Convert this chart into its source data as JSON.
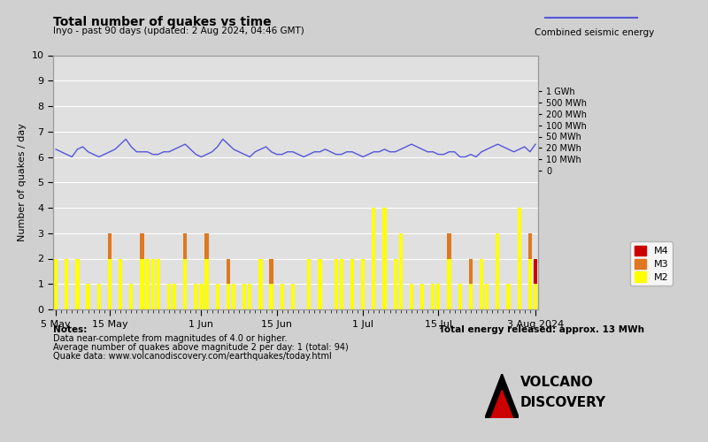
{
  "title": "Total number of quakes vs time",
  "subtitle": "Inyo - past 90 days (updated: 2 Aug 2024, 04:46 GMT)",
  "ylabel": "Number of quakes / day",
  "right_label": "Combined seismic energy",
  "background_color": "#d0d0d0",
  "plot_bg_color": "#e0e0e0",
  "bar_color_m2": "#ffff00",
  "bar_color_m3": "#e07820",
  "bar_color_m4": "#cc0000",
  "line_color": "#5555dd",
  "ylim": [
    0,
    10
  ],
  "notes_line1": "Notes:",
  "notes_line2": "Data near-complete from magnitudes of 4.0 or higher.",
  "notes_line3": "Average number of quakes above magnitude 2 per day: 1 (total: 94)",
  "notes_line4": "Quake data: www.volcanodiscovery.com/earthquakes/today.html",
  "energy_note": "Total energy released: approx. 13 MWh",
  "xtick_labels": [
    "5 May",
    "15 May",
    "1 Jun",
    "15 Jun",
    "1 Jul",
    "15 Jul",
    "3 Aug 2024"
  ],
  "xtick_positions": [
    0,
    10,
    27,
    41,
    57,
    71,
    89
  ],
  "right_y_positions": [
    5.45,
    5.9,
    6.35,
    6.8,
    7.25,
    7.7,
    8.15,
    8.6
  ],
  "right_y_labels": [
    "0",
    "10 MWh",
    "20 MWh",
    "50 MWh",
    "100 MWh",
    "200 MWh",
    "500 MWh",
    "1 GWh"
  ],
  "bar_m2": [
    2,
    0,
    2,
    0,
    2,
    0,
    1,
    0,
    1,
    0,
    2,
    0,
    2,
    0,
    1,
    0,
    2,
    2,
    2,
    2,
    0,
    1,
    1,
    0,
    2,
    0,
    1,
    1,
    2,
    0,
    1,
    0,
    1,
    1,
    0,
    1,
    1,
    0,
    2,
    0,
    1,
    0,
    1,
    0,
    1,
    0,
    0,
    2,
    0,
    2,
    0,
    0,
    2,
    2,
    0,
    2,
    0,
    2,
    0,
    4,
    0,
    4,
    0,
    2,
    3,
    0,
    1,
    0,
    1,
    0,
    1,
    1,
    0,
    2,
    0,
    1,
    0,
    1,
    0,
    2,
    1,
    0,
    3,
    0,
    1,
    0,
    4,
    0,
    2,
    1
  ],
  "bar_m3": [
    0,
    0,
    0,
    0,
    0,
    0,
    0,
    0,
    0,
    0,
    1,
    0,
    0,
    0,
    0,
    0,
    1,
    0,
    0,
    0,
    0,
    0,
    0,
    0,
    1,
    0,
    0,
    0,
    1,
    0,
    0,
    0,
    1,
    0,
    0,
    0,
    0,
    0,
    0,
    0,
    1,
    0,
    0,
    0,
    0,
    0,
    0,
    0,
    0,
    0,
    0,
    0,
    0,
    0,
    0,
    0,
    0,
    0,
    0,
    0,
    0,
    0,
    0,
    0,
    0,
    0,
    0,
    0,
    0,
    0,
    0,
    0,
    0,
    1,
    0,
    0,
    0,
    1,
    0,
    0,
    0,
    0,
    0,
    0,
    0,
    0,
    0,
    0,
    1,
    0
  ],
  "bar_m4": [
    0,
    0,
    0,
    0,
    0,
    0,
    0,
    0,
    0,
    0,
    0,
    0,
    0,
    0,
    0,
    0,
    0,
    0,
    0,
    0,
    0,
    0,
    0,
    0,
    0,
    0,
    0,
    0,
    0,
    0,
    0,
    0,
    0,
    0,
    0,
    0,
    0,
    0,
    0,
    0,
    0,
    0,
    0,
    0,
    0,
    0,
    0,
    0,
    0,
    0,
    0,
    0,
    0,
    0,
    0,
    0,
    0,
    0,
    0,
    0,
    0,
    0,
    0,
    0,
    0,
    0,
    0,
    0,
    0,
    0,
    0,
    0,
    0,
    0,
    0,
    0,
    0,
    0,
    0,
    0,
    0,
    0,
    0,
    0,
    0,
    0,
    0,
    0,
    0,
    1
  ],
  "line_values": [
    6.3,
    6.2,
    6.1,
    6.0,
    6.3,
    6.4,
    6.2,
    6.1,
    6.0,
    6.1,
    6.2,
    6.3,
    6.5,
    6.7,
    6.4,
    6.2,
    6.2,
    6.2,
    6.1,
    6.1,
    6.2,
    6.2,
    6.3,
    6.4,
    6.5,
    6.3,
    6.1,
    6.0,
    6.1,
    6.2,
    6.4,
    6.7,
    6.5,
    6.3,
    6.2,
    6.1,
    6.0,
    6.2,
    6.3,
    6.4,
    6.2,
    6.1,
    6.1,
    6.2,
    6.2,
    6.1,
    6.0,
    6.1,
    6.2,
    6.2,
    6.3,
    6.2,
    6.1,
    6.1,
    6.2,
    6.2,
    6.1,
    6.0,
    6.1,
    6.2,
    6.2,
    6.3,
    6.2,
    6.2,
    6.3,
    6.4,
    6.5,
    6.4,
    6.3,
    6.2,
    6.2,
    6.1,
    6.1,
    6.2,
    6.2,
    6.0,
    6.0,
    6.1,
    6.0,
    6.2,
    6.3,
    6.4,
    6.5,
    6.4,
    6.3,
    6.2,
    6.3,
    6.4,
    6.2,
    6.5
  ]
}
